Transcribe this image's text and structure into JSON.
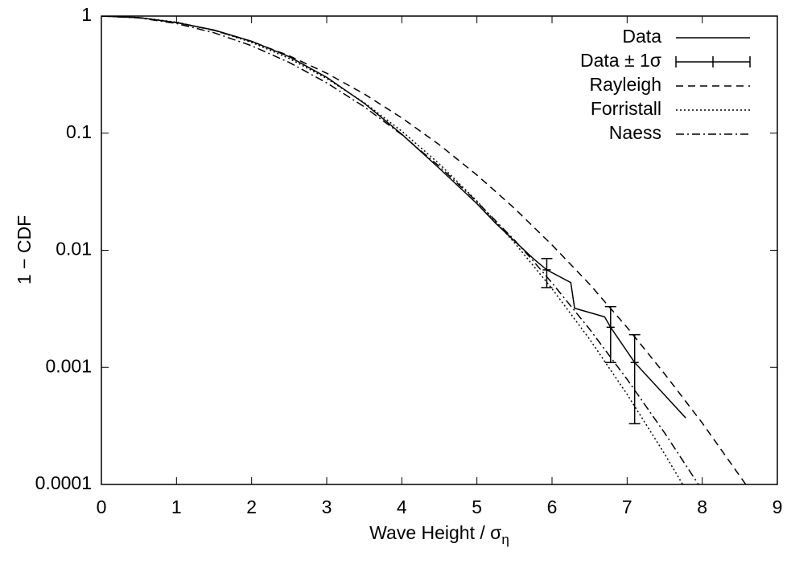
{
  "chart_data": {
    "type": "line",
    "xlabel": "Wave Height / σ",
    "xlabel_subscript": "η",
    "ylabel": "1 − CDF",
    "xlim": [
      0,
      9
    ],
    "xticks": [
      0,
      1,
      2,
      3,
      4,
      5,
      6,
      7,
      8,
      9
    ],
    "ylim": [
      0.0001,
      1
    ],
    "yticks": [
      0.0001,
      0.001,
      0.01,
      0.1,
      1
    ],
    "log_y": true,
    "legend": "top-right",
    "series": [
      {
        "name": "Data",
        "color": "#000000",
        "dash": "none",
        "x": [
          0,
          0.5,
          1,
          1.5,
          2,
          2.5,
          3,
          3.5,
          4,
          4.5,
          5,
          5.25,
          5.5,
          5.75,
          5.93,
          6.25,
          6.3,
          6.7,
          6.78,
          7.1,
          7.78
        ],
        "values": [
          1,
          0.97,
          0.88,
          0.76,
          0.61,
          0.45,
          0.3,
          0.18,
          0.098,
          0.05,
          0.025,
          0.017,
          0.012,
          0.0085,
          0.0068,
          0.0053,
          0.0032,
          0.0027,
          0.0022,
          0.0011,
          0.00037
        ]
      },
      {
        "name": "Data ± 1σ",
        "color": "#000000",
        "errorbars": true,
        "x": [
          5.93,
          6.78,
          7.1
        ],
        "values": [
          0.0068,
          0.0022,
          0.0011
        ],
        "low": [
          0.0048,
          0.0011,
          0.00033
        ],
        "high": [
          0.0085,
          0.0033,
          0.0019
        ]
      },
      {
        "name": "Rayleigh",
        "color": "#000000",
        "dash": "9 6",
        "x": [
          0,
          0.5,
          1,
          1.5,
          2,
          2.5,
          3,
          3.5,
          4,
          4.5,
          5,
          5.5,
          6,
          6.5,
          7,
          7.5,
          8,
          8.58
        ],
        "values": [
          1,
          0.969,
          0.882,
          0.755,
          0.607,
          0.458,
          0.325,
          0.216,
          0.135,
          0.0796,
          0.0439,
          0.0228,
          0.0111,
          0.00513,
          0.00219,
          0.000878,
          0.000335,
          0.0001
        ]
      },
      {
        "name": "Forristall",
        "color": "#000000",
        "dash": "2 3",
        "x": [
          0,
          0.5,
          1,
          1.5,
          2,
          2.5,
          3,
          3.5,
          4,
          4.5,
          5,
          5.5,
          6,
          6.5,
          7,
          7.5,
          7.74
        ],
        "values": [
          1,
          0.973,
          0.888,
          0.755,
          0.596,
          0.435,
          0.293,
          0.182,
          0.104,
          0.0546,
          0.0263,
          0.0116,
          0.0047,
          0.00174,
          0.000588,
          0.000182,
          0.0001
        ]
      },
      {
        "name": "Naess",
        "color": "#000000",
        "dash": "10 4 2 4",
        "x": [
          0,
          0.5,
          1,
          1.5,
          2,
          2.5,
          3,
          3.5,
          4,
          4.5,
          5,
          5.5,
          5.75,
          6,
          6.5,
          7,
          7.5,
          7.95
        ],
        "values": [
          1,
          0.964,
          0.864,
          0.72,
          0.558,
          0.402,
          0.269,
          0.168,
          0.097,
          0.052,
          0.026,
          0.0122,
          0.0081,
          0.00526,
          0.00212,
          0.00079,
          0.000275,
          0.0001
        ]
      }
    ]
  }
}
